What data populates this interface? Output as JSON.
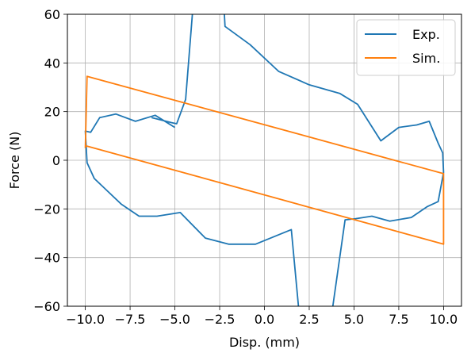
{
  "chart_data": {
    "type": "line",
    "xlabel": "Disp. (mm)",
    "ylabel": "Force (N)",
    "xlim": [
      -11.0,
      11.0
    ],
    "ylim": [
      -60,
      60
    ],
    "grid": true,
    "legend_position": "top-right",
    "x_ticks": [
      -10.0,
      -7.5,
      -5.0,
      -2.5,
      0.0,
      2.5,
      5.0,
      7.5,
      10.0
    ],
    "x_tick_labels": [
      "−10.0",
      "−7.5",
      "−5.0",
      "−2.5",
      "0.0",
      "2.5",
      "5.0",
      "7.5",
      "10.0"
    ],
    "y_ticks": [
      -60,
      -40,
      -20,
      0,
      20,
      40,
      60
    ],
    "y_tick_labels": [
      "−60",
      "−40",
      "−20",
      "0",
      "20",
      "40",
      "60"
    ],
    "series": [
      {
        "name": "Exp.",
        "color": "#1f77b4",
        "x": [
          -6.3,
          -5.2,
          -4.9,
          -4.4,
          -4.0,
          -3.0,
          -2.5,
          -2.2,
          -0.8,
          0.8,
          2.5,
          4.2,
          5.2,
          6.5,
          7.5,
          8.5,
          9.2,
          9.7,
          9.95,
          10.0,
          9.7,
          9.1,
          8.2,
          7.0,
          6.0,
          5.1,
          4.5,
          3.8,
          3.2,
          1.9,
          1.5,
          -0.5,
          -2.0,
          -3.3,
          -4.7,
          -6.0,
          -7.0,
          -8.0,
          -9.5,
          -9.9,
          -10.0,
          -9.7,
          -9.2,
          -8.3,
          -7.2,
          -6.1,
          -5.0
        ],
        "y": [
          17.5,
          15.5,
          15,
          25,
          62,
          95,
          95,
          55,
          47.5,
          36.5,
          31,
          27.5,
          23,
          8,
          13.5,
          14.5,
          16,
          7,
          3,
          -5,
          -17,
          -19,
          -23.5,
          -25,
          -23,
          -24,
          -24.5,
          -61,
          -65,
          -60,
          -28.5,
          -34.5,
          -34.5,
          -32,
          -21.5,
          -23,
          -23,
          -18,
          -7.5,
          -1,
          12,
          11.5,
          17.5,
          19,
          16,
          18.5,
          13.5
        ]
      },
      {
        "name": "Sim.",
        "color": "#ff7f0e",
        "x": [
          -10.0,
          -9.9,
          10.0,
          10.0,
          -10.0
        ],
        "y": [
          5,
          34.5,
          -5.5,
          -34.5,
          6
        ]
      }
    ]
  }
}
